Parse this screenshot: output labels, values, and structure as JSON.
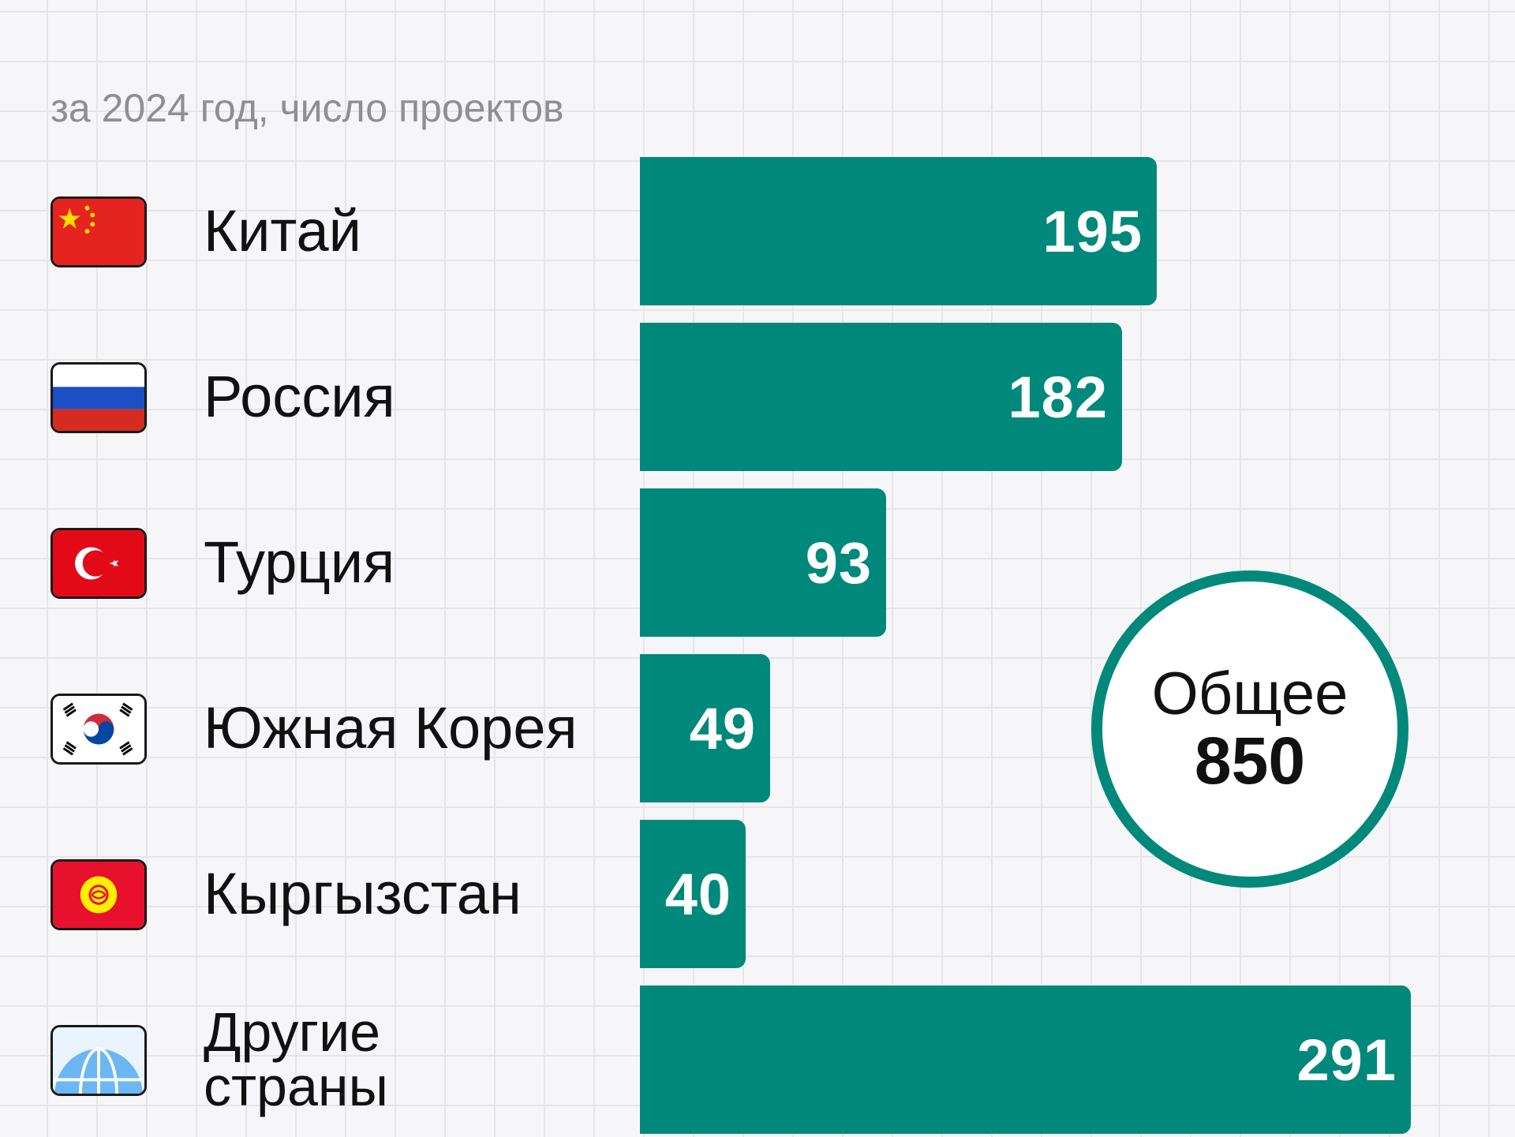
{
  "chart_data": {
    "type": "bar",
    "orientation": "horizontal",
    "subtitle": "за 2024 год, число проектов",
    "categories": [
      "Китай",
      "Россия",
      "Турция",
      "Южная Корея",
      "Кыргызстан",
      "Другие страны"
    ],
    "values": [
      195,
      182,
      93,
      49,
      40,
      291
    ],
    "xlim": [
      0,
      291
    ],
    "grid": true,
    "data_labels": [
      "195",
      "182",
      "93",
      "49",
      "40",
      "291"
    ],
    "total": {
      "label": "Общее",
      "value": "850"
    },
    "category_icons": [
      "china-flag-icon",
      "russia-flag-icon",
      "turkey-flag-icon",
      "south-korea-flag-icon",
      "kyrgyzstan-flag-icon",
      "globe-icon"
    ]
  },
  "colors": {
    "bar": "#00897b",
    "ring": "#00897b",
    "background": "#f6f6f8",
    "grid": "#e6e6ea",
    "subtitle": "#8e8e93",
    "text": "#111111"
  }
}
